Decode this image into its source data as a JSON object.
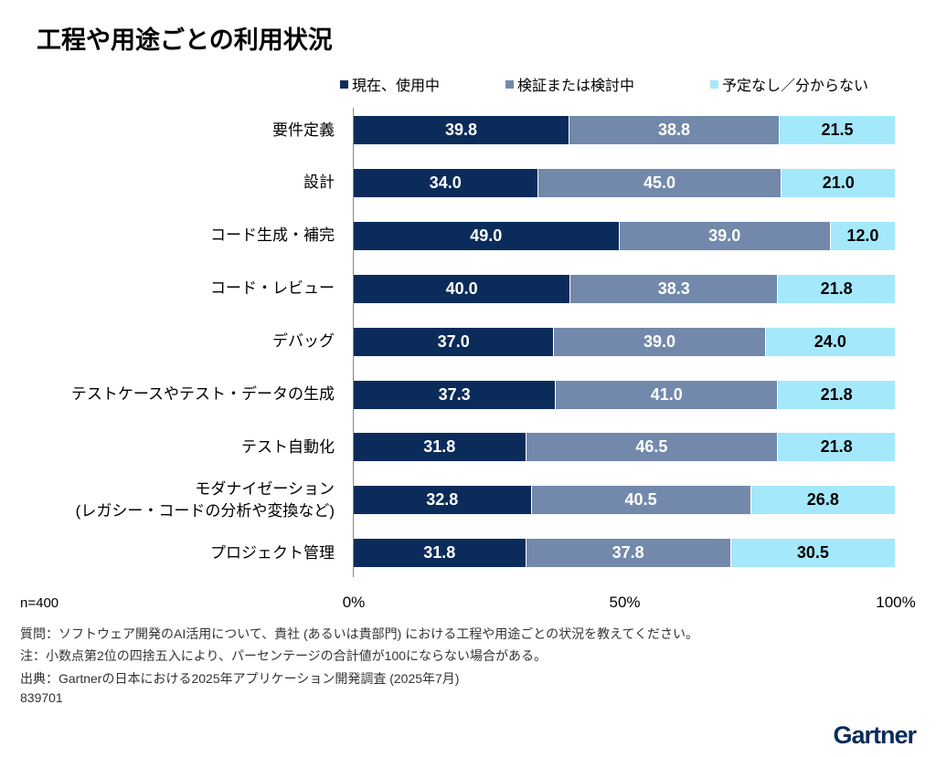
{
  "title": "工程や用途ごとの利用状況",
  "logo_text": "Gartner",
  "chart_data": {
    "type": "bar",
    "orientation": "horizontal",
    "stacked": true,
    "title": "工程や用途ごとの利用状況",
    "categories": [
      "要件定義",
      "設計",
      "コード生成・補完",
      "コード・レビュー",
      "デバッグ",
      "テストケースやテスト・データの生成",
      "テスト自動化",
      "モダナイゼーション\n(レガシー・コードの分析や変換など)",
      "プロジェクト管理"
    ],
    "series": [
      {
        "name": "現在、使用中",
        "color": "#0b2c5a",
        "values": [
          39.8,
          34.0,
          49.0,
          40.0,
          37.0,
          37.3,
          31.8,
          32.8,
          31.8
        ]
      },
      {
        "name": "検証または検討中",
        "color": "#7289ab",
        "values": [
          38.8,
          45.0,
          39.0,
          38.3,
          39.0,
          41.0,
          46.5,
          40.5,
          37.8
        ]
      },
      {
        "name": "予定なし／分からない",
        "color": "#a4e8fb",
        "values": [
          21.5,
          21.0,
          12.0,
          21.8,
          24.0,
          21.8,
          21.8,
          26.8,
          30.5
        ]
      }
    ],
    "xlim": [
      0,
      100
    ],
    "xticks": [
      "0%",
      "50%",
      "100%"
    ],
    "legend": "top",
    "grid": false
  },
  "notes": {
    "n": "n=400",
    "question": "質問：ソフトウェア開発のAI活用について、貴社 (あるいは貴部門) における工程や用途ごとの状況を教えてください。",
    "note": "注：小数点第2位の四捨五入により、パーセンテージの合計値が100にならない場合がある。",
    "source": "出典：Gartnerの日本における2025年アプリケーション開発調査 (2025年7月)",
    "id": "839701"
  }
}
